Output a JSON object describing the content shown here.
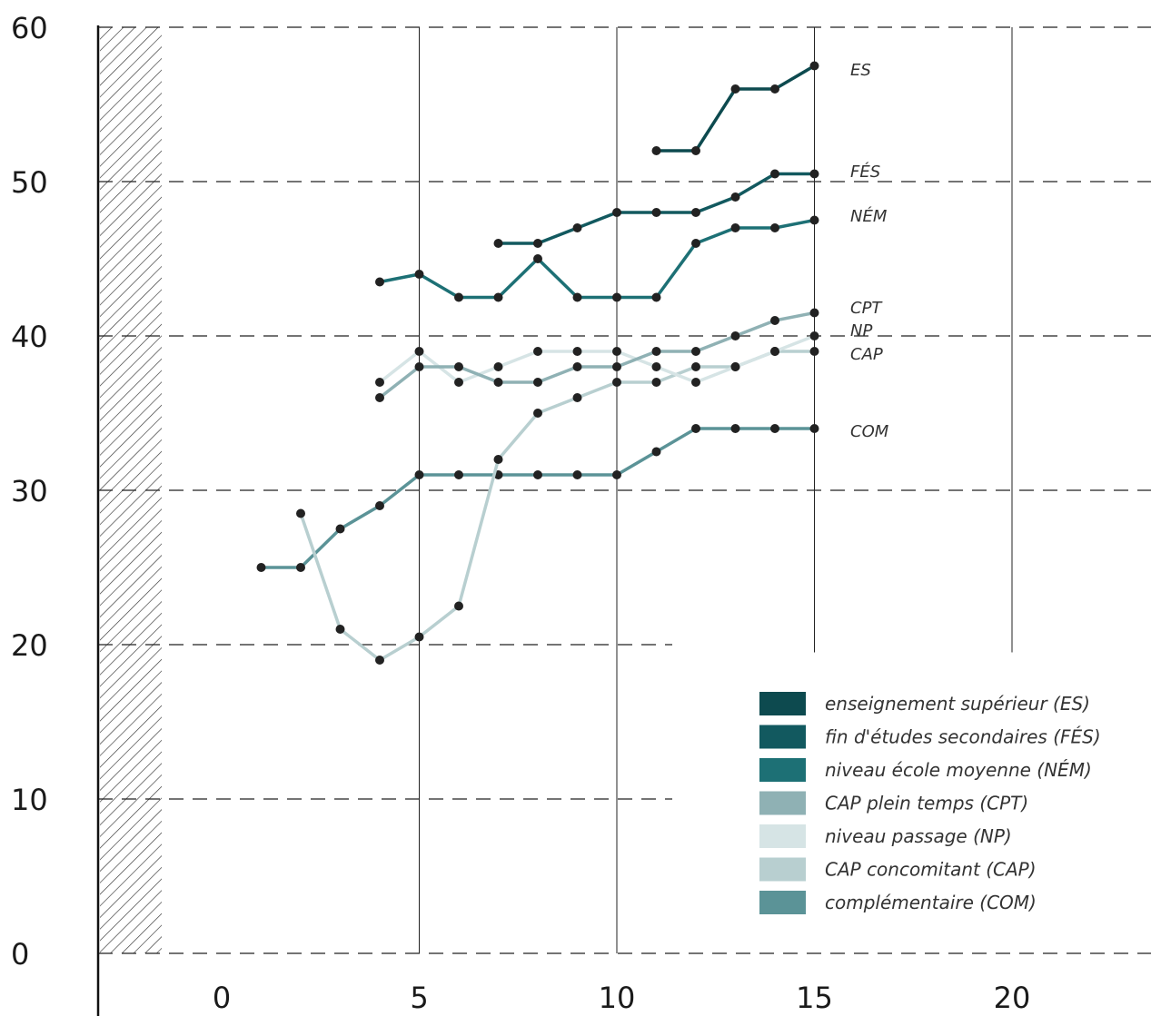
{
  "chart_data": {
    "type": "line",
    "xlim": [
      -3,
      22
    ],
    "ylim": [
      0,
      60
    ],
    "x_ticks": [
      0,
      5,
      10,
      15,
      20
    ],
    "y_ticks": [
      0,
      10,
      20,
      30,
      40,
      50,
      60
    ],
    "grid": "horizontal dashed lines, vertical solid lines at 5, 10, 15, 20",
    "legend_position": "bottom-right",
    "series": [
      {
        "name": "enseignement supérieur (ES)",
        "label": "ES",
        "color": "#0d4a4f",
        "points": [
          [
            11,
            52
          ],
          [
            12,
            52
          ],
          [
            13,
            56
          ],
          [
            14,
            56
          ],
          [
            15,
            57.5
          ]
        ]
      },
      {
        "name": "fin d'études secondaires (FÉS)",
        "label": "FÉS",
        "color": "#12595f",
        "points": [
          [
            7,
            46
          ],
          [
            8,
            46
          ],
          [
            9,
            47
          ],
          [
            10,
            48
          ],
          [
            11,
            48
          ],
          [
            12,
            48
          ],
          [
            13,
            49
          ],
          [
            14,
            50.5
          ],
          [
            15,
            50.5
          ]
        ]
      },
      {
        "name": "niveau école moyenne (NÉM)",
        "label": "NÉM",
        "color": "#1d7075",
        "points": [
          [
            4,
            43.5
          ],
          [
            5,
            44
          ],
          [
            6,
            42.5
          ],
          [
            7,
            42.5
          ],
          [
            8,
            45
          ],
          [
            9,
            42.5
          ],
          [
            10,
            42.5
          ],
          [
            11,
            42.5
          ],
          [
            12,
            46
          ],
          [
            13,
            47
          ],
          [
            14,
            47
          ],
          [
            15,
            47.5
          ]
        ]
      },
      {
        "name": "CAP plein temps (CPT)",
        "label": "CPT",
        "color": "#8fb1b4",
        "points": [
          [
            4,
            36
          ],
          [
            5,
            38
          ],
          [
            6,
            38
          ],
          [
            7,
            37
          ],
          [
            8,
            37
          ],
          [
            9,
            38
          ],
          [
            10,
            38
          ],
          [
            11,
            39
          ],
          [
            12,
            39
          ],
          [
            13,
            40
          ],
          [
            14,
            41
          ],
          [
            15,
            41.5
          ]
        ]
      },
      {
        "name": "niveau passage (NP)",
        "label": "NP",
        "color": "#d6e4e5",
        "points": [
          [
            4,
            37
          ],
          [
            5,
            39
          ],
          [
            6,
            37
          ],
          [
            7,
            38
          ],
          [
            8,
            39
          ],
          [
            9,
            39
          ],
          [
            10,
            39
          ],
          [
            11,
            38
          ],
          [
            12,
            37
          ],
          [
            13,
            38
          ],
          [
            14,
            39
          ],
          [
            15,
            40
          ]
        ]
      },
      {
        "name": "CAP concomitant (CAP)",
        "label": "CAP",
        "color": "#b8cfd0",
        "points": [
          [
            2,
            28.5
          ],
          [
            3,
            21
          ],
          [
            4,
            19
          ],
          [
            5,
            20.5
          ],
          [
            6,
            22.5
          ],
          [
            7,
            32
          ],
          [
            8,
            35
          ],
          [
            9,
            36
          ],
          [
            10,
            37
          ],
          [
            11,
            37
          ],
          [
            12,
            38
          ],
          [
            13,
            38
          ],
          [
            14,
            39
          ],
          [
            15,
            39
          ]
        ]
      },
      {
        "name": "complémentaire (COM)",
        "label": "COM",
        "color": "#5b9397",
        "points": [
          [
            1,
            25
          ],
          [
            2,
            25
          ],
          [
            3,
            27.5
          ],
          [
            4,
            29
          ],
          [
            5,
            31
          ],
          [
            6,
            31
          ],
          [
            7,
            31
          ],
          [
            8,
            31
          ],
          [
            9,
            31
          ],
          [
            10,
            31
          ],
          [
            11,
            32.5
          ],
          [
            12,
            34
          ],
          [
            13,
            34
          ],
          [
            14,
            34
          ],
          [
            15,
            34
          ]
        ]
      }
    ]
  }
}
